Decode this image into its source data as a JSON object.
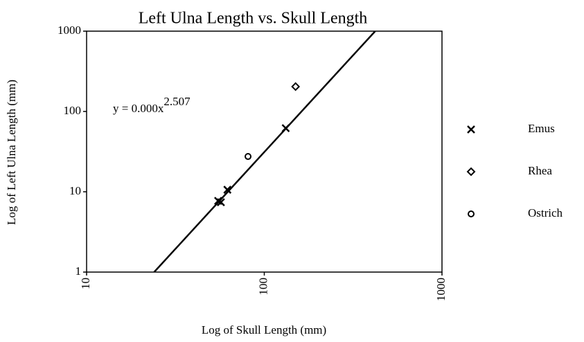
{
  "chart_data": {
    "type": "scatter",
    "title": "Left Ulna Length vs. Skull Length",
    "xlabel": "Log of Skull Length (mm)",
    "ylabel": "Log of Left Ulna Length (mm)",
    "xscale": "log",
    "yscale": "log",
    "xlim": [
      10,
      1000
    ],
    "ylim": [
      1,
      1000
    ],
    "xticks": [
      10,
      100,
      1000
    ],
    "yticks": [
      1,
      10,
      100,
      1000
    ],
    "series": [
      {
        "name": "Emus",
        "marker": "x",
        "color": "#000000",
        "x": [
          55,
          57,
          62,
          132
        ],
        "values": [
          7.7,
          7.4,
          10.6,
          62
        ]
      },
      {
        "name": "Rhea",
        "marker": "diamond",
        "color": "#000000",
        "x": [
          150
        ],
        "values": [
          204
        ]
      },
      {
        "name": "Ostrich",
        "marker": "circle",
        "color": "#000000",
        "x": [
          81
        ],
        "values": [
          27.5
        ]
      }
    ],
    "trendline": {
      "x": [
        24,
        421
      ],
      "values": [
        1,
        1000
      ]
    },
    "equation": {
      "text": "y = 0.000x",
      "exponent": "2.507"
    },
    "legend": "right"
  }
}
